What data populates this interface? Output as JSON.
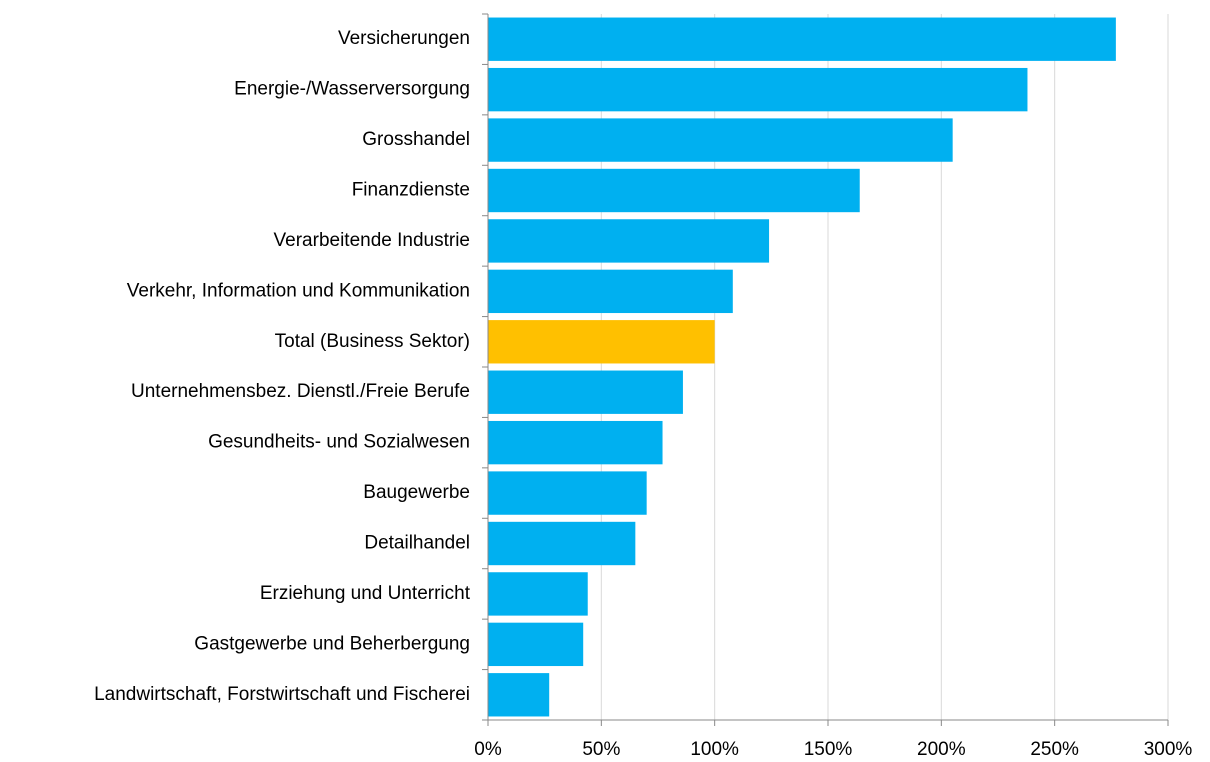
{
  "chart_data": {
    "type": "barh",
    "categories": [
      "Versicherungen",
      "Energie-/Wasserversorgung",
      "Grosshandel",
      "Finanzdienste",
      "Verarbeitende Industrie",
      "Verkehr, Information und Kommunikation",
      "Total (Business Sektor)",
      "Unternehmensbez. Dienstl./Freie Berufe",
      "Gesundheits- und Sozialwesen",
      "Baugewerbe",
      "Detailhandel",
      "Erziehung und Unterricht",
      "Gastgewerbe und Beherbergung",
      "Landwirtschaft, Forstwirtschaft und Fischerei"
    ],
    "values": [
      277,
      238,
      205,
      164,
      124,
      108,
      100,
      86,
      77,
      70,
      65,
      44,
      42,
      27
    ],
    "colors": [
      "#00b0f0",
      "#00b0f0",
      "#00b0f0",
      "#00b0f0",
      "#00b0f0",
      "#00b0f0",
      "#ffc000",
      "#00b0f0",
      "#00b0f0",
      "#00b0f0",
      "#00b0f0",
      "#00b0f0",
      "#00b0f0",
      "#00b0f0"
    ],
    "xlim": [
      0,
      300
    ],
    "xticks": [
      {
        "value": 0,
        "label": "0%"
      },
      {
        "value": 50,
        "label": "50%"
      },
      {
        "value": 100,
        "label": "100%"
      },
      {
        "value": 150,
        "label": "150%"
      },
      {
        "value": 200,
        "label": "200%"
      },
      {
        "value": 250,
        "label": "250%"
      },
      {
        "value": 300,
        "label": "300%"
      }
    ],
    "grid": true
  }
}
